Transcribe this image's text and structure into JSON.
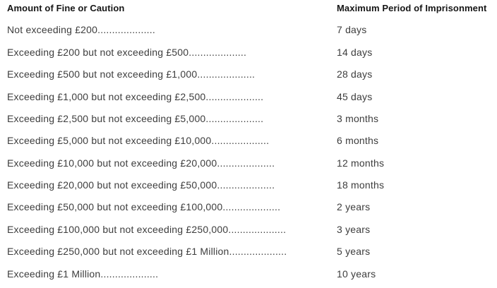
{
  "table": {
    "columns": [
      {
        "label": "Amount of Fine or Caution"
      },
      {
        "label": "Maximum Period of Imprisonment"
      }
    ],
    "rows": [
      {
        "fine": "Not exceeding £200....................",
        "period": "7 days"
      },
      {
        "fine": "Exceeding £200 but not exceeding £500....................",
        "period": "14 days"
      },
      {
        "fine": "Exceeding £500 but not exceeding £1,000....................",
        "period": "28 days"
      },
      {
        "fine": "Exceeding £1,000 but not exceeding £2,500....................",
        "period": "45 days"
      },
      {
        "fine": "Exceeding £2,500 but not exceeding £5,000....................",
        "period": "3 months"
      },
      {
        "fine": "Exceeding £5,000 but not exceeding £10,000....................",
        "period": "6 months"
      },
      {
        "fine": "Exceeding £10,000 but not exceeding £20,000....................",
        "period": "12 months"
      },
      {
        "fine": "Exceeding £20,000 but not exceeding £50,000....................",
        "period": "18 months"
      },
      {
        "fine": "Exceeding £50,000 but not exceeding £100,000....................",
        "period": "2 years"
      },
      {
        "fine": "Exceeding £100,000 but not exceeding £250,000....................",
        "period": "3 years"
      },
      {
        "fine": "Exceeding £250,000 but not exceeding £1 Million....................",
        "period": "5 years"
      },
      {
        "fine": "Exceeding £1 Million....................",
        "period": "10 years"
      }
    ]
  },
  "colors": {
    "background": "#ffffff",
    "header_text": "#161616",
    "body_text": "#3d3d3d"
  }
}
